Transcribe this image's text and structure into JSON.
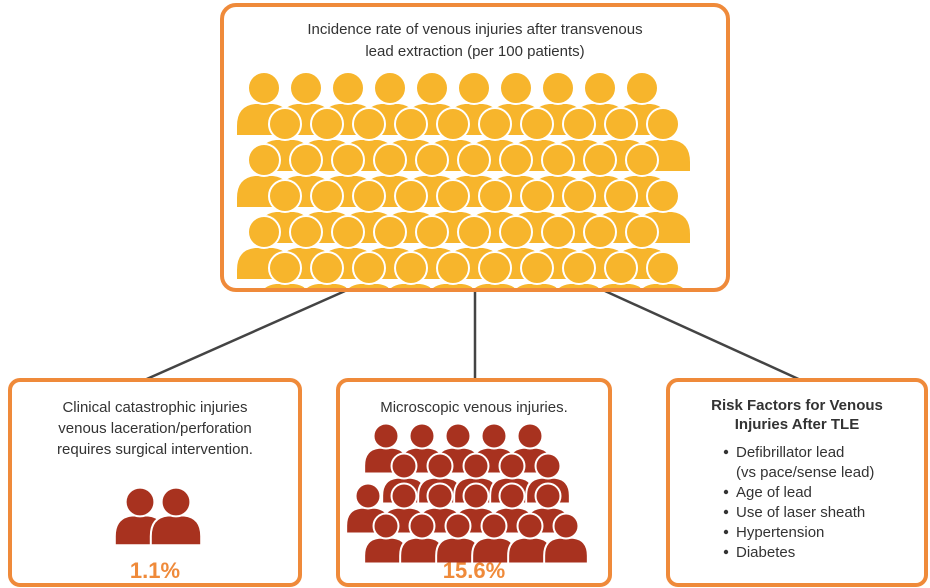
{
  "top": {
    "title_lines": [
      "Incidence rate of venous  injuries after transvenous",
      "lead extraction (per 100 patients)"
    ]
  },
  "boxes": [
    {
      "text_lines": [
        "Clinical catastrophic injuries",
        "venous laceration/perforation",
        "requires surgical intervention."
      ],
      "value": "1.1%"
    },
    {
      "text_lines": [
        "Microscopic venous injuries."
      ],
      "value": "15.6%"
    }
  ],
  "risk_factors": {
    "title_lines": [
      "Risk Factors for Venous",
      "Injuries After TLE"
    ],
    "items": [
      [
        "Defibrillator lead",
        "(vs pace/sense lead)"
      ],
      [
        "Age of lead"
      ],
      [
        "Use of laser sheath"
      ],
      [
        "Hypertension"
      ],
      [
        "Diabetes"
      ]
    ]
  }
}
